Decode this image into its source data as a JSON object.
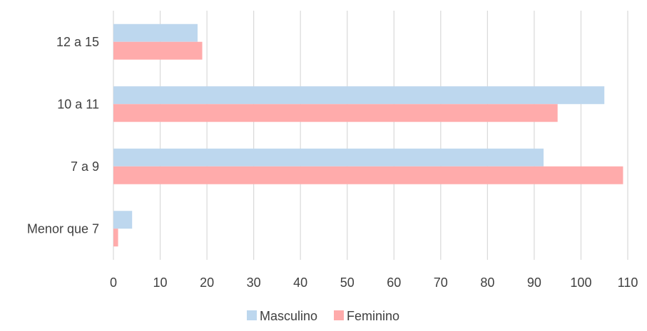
{
  "chart_data": {
    "type": "bar",
    "orientation": "horizontal",
    "categories": [
      "12 a 15",
      "10 a 11",
      "7 a 9",
      "Menor que 7"
    ],
    "series": [
      {
        "name": "Masculino",
        "values": [
          18,
          105,
          92,
          4
        ],
        "color": "#bdd7ee"
      },
      {
        "name": "Feminino",
        "values": [
          19,
          95,
          109,
          1
        ],
        "color": "#ffabab"
      }
    ],
    "xticks": [
      0,
      10,
      20,
      30,
      40,
      50,
      60,
      70,
      80,
      90,
      100,
      110
    ],
    "xlim": [
      0,
      110
    ],
    "title": "",
    "xlabel": "",
    "ylabel": "",
    "grid": "vertical",
    "legend": "bottom-center"
  }
}
